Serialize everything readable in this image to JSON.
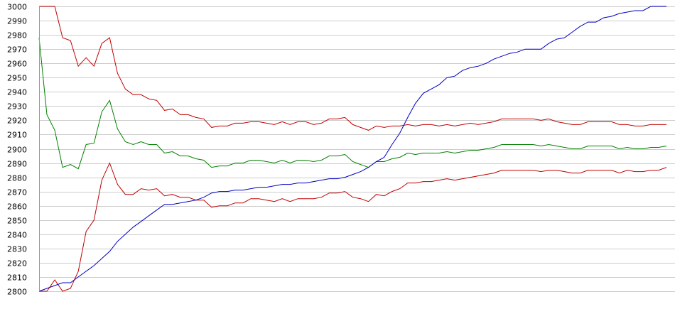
{
  "chart_data": {
    "type": "line",
    "title": "",
    "xlabel": "",
    "ylabel": "",
    "ylim": [
      2800,
      3000
    ],
    "y_ticks": [
      2800,
      2810,
      2820,
      2830,
      2840,
      2850,
      2860,
      2870,
      2880,
      2890,
      2900,
      2910,
      2920,
      2930,
      2940,
      2950,
      2960,
      2970,
      2980,
      2990,
      3000
    ],
    "y_tick_labels": [
      "2800",
      "2810",
      "2820",
      "2830",
      "2840",
      "2850",
      "2860",
      "2870",
      "2880",
      "2890",
      "2900",
      "2910",
      "2920",
      "2930",
      "2940",
      "2950",
      "2960",
      "2970",
      "2980",
      "2990",
      "3000"
    ],
    "grid": true,
    "x": [
      0,
      1,
      2,
      3,
      4,
      5,
      6,
      7,
      8,
      9,
      10,
      11,
      12,
      13,
      14,
      15,
      16,
      17,
      18,
      19,
      20,
      21,
      22,
      23,
      24,
      25,
      26,
      27,
      28,
      29,
      30,
      31,
      32,
      33,
      34,
      35,
      36,
      37,
      38,
      39,
      40,
      41,
      42,
      43,
      44,
      45,
      46,
      47,
      48,
      49,
      50,
      51,
      52,
      53,
      54,
      55,
      56,
      57,
      58,
      59,
      60,
      61,
      62,
      63,
      64,
      65,
      66,
      67,
      68,
      69,
      70,
      71,
      72,
      73,
      74,
      75,
      76,
      77,
      78,
      79,
      80
    ],
    "series": [
      {
        "color": "#c00000",
        "values": [
          3000,
          3000,
          3000,
          2978,
          2976,
          2958,
          2964,
          2958,
          2974,
          2978,
          2953,
          2942,
          2938,
          2938,
          2935,
          2934,
          2927,
          2928,
          2924,
          2924,
          2922,
          2921,
          2915,
          2916,
          2916,
          2918,
          2918,
          2919,
          2919,
          2918,
          2917,
          2919,
          2917,
          2919,
          2919,
          2917,
          2918,
          2921,
          2921,
          2922,
          2917,
          2915,
          2913,
          2916,
          2915,
          2916,
          2916,
          2917,
          2916,
          2917,
          2917,
          2916,
          2917,
          2916,
          2917,
          2918,
          2917,
          2918,
          2919,
          2921,
          2921,
          2921,
          2921,
          2921,
          2920,
          2921,
          2919,
          2918,
          2917,
          2917,
          2919,
          2919,
          2919,
          2919,
          2917,
          2917,
          2916,
          2916,
          2917,
          2917,
          2917
        ]
      },
      {
        "color": "#008000",
        "values": [
          2978,
          2924,
          2913,
          2887,
          2889,
          2886,
          2903,
          2904,
          2926,
          2934,
          2914,
          2905,
          2903,
          2905,
          2903,
          2903,
          2897,
          2898,
          2895,
          2895,
          2893,
          2892,
          2887,
          2888,
          2888,
          2890,
          2890,
          2892,
          2892,
          2891,
          2890,
          2892,
          2890,
          2892,
          2892,
          2891,
          2892,
          2895,
          2895,
          2896,
          2891,
          2889,
          2887,
          2891,
          2891,
          2893,
          2894,
          2897,
          2896,
          2897,
          2897,
          2897,
          2898,
          2897,
          2898,
          2899,
          2899,
          2900,
          2901,
          2903,
          2903,
          2903,
          2903,
          2903,
          2902,
          2903,
          2902,
          2901,
          2900,
          2900,
          2902,
          2902,
          2902,
          2902,
          2900,
          2901,
          2900,
          2900,
          2901,
          2901,
          2902
        ]
      },
      {
        "color": "#c00000",
        "values": [
          2800,
          2800,
          2808,
          2800,
          2802,
          2814,
          2842,
          2850,
          2878,
          2890,
          2875,
          2868,
          2868,
          2872,
          2871,
          2872,
          2867,
          2868,
          2866,
          2866,
          2864,
          2864,
          2859,
          2860,
          2860,
          2862,
          2862,
          2865,
          2865,
          2864,
          2863,
          2865,
          2863,
          2865,
          2865,
          2865,
          2866,
          2869,
          2869,
          2870,
          2866,
          2865,
          2863,
          2868,
          2867,
          2870,
          2872,
          2876,
          2876,
          2877,
          2877,
          2878,
          2879,
          2878,
          2879,
          2880,
          2881,
          2882,
          2883,
          2885,
          2885,
          2885,
          2885,
          2885,
          2884,
          2885,
          2885,
          2884,
          2883,
          2883,
          2885,
          2885,
          2885,
          2885,
          2883,
          2885,
          2884,
          2884,
          2885,
          2885,
          2887
        ]
      },
      {
        "color": "#0000c0",
        "values": [
          2800,
          2802,
          2804,
          2806,
          2806,
          2810,
          2814,
          2818,
          2823,
          2828,
          2835,
          2840,
          2845,
          2849,
          2853,
          2857,
          2861,
          2861,
          2862,
          2863,
          2864,
          2866,
          2869,
          2870,
          2870,
          2871,
          2871,
          2872,
          2873,
          2873,
          2874,
          2875,
          2875,
          2876,
          2876,
          2877,
          2878,
          2879,
          2879,
          2880,
          2882,
          2884,
          2887,
          2891,
          2894,
          2903,
          2911,
          2922,
          2932,
          2939,
          2942,
          2945,
          2950,
          2951,
          2955,
          2957,
          2958,
          2960,
          2963,
          2965,
          2967,
          2968,
          2970,
          2970,
          2970,
          2974,
          2977,
          2978,
          2982,
          2986,
          2989,
          2989,
          2992,
          2993,
          2995,
          2996,
          2997,
          2997,
          3000,
          3000,
          3000
        ]
      }
    ]
  }
}
